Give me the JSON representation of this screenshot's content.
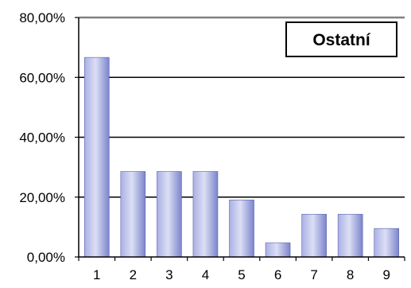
{
  "chart_data": {
    "type": "bar",
    "title": "",
    "xlabel": "",
    "ylabel": "",
    "categories": [
      "1",
      "2",
      "3",
      "4",
      "5",
      "6",
      "7",
      "8",
      "9"
    ],
    "series": [
      {
        "name": "Ostatní",
        "values": [
          66.67,
          28.57,
          28.57,
          28.57,
          19.05,
          4.76,
          14.29,
          14.29,
          9.52
        ]
      }
    ],
    "ylim": [
      0,
      80
    ],
    "yticks": [
      0,
      20,
      40,
      60,
      80
    ],
    "ytick_labels": [
      "0,00%",
      "20,00%",
      "40,00%",
      "60,00%",
      "80,00%"
    ],
    "grid": true,
    "legend_position": "top-right",
    "colors": {
      "bar_light": "#d4d8f2",
      "bar_dark": "#7d86cc",
      "grid": "#000000",
      "top_border": "#808080"
    }
  }
}
